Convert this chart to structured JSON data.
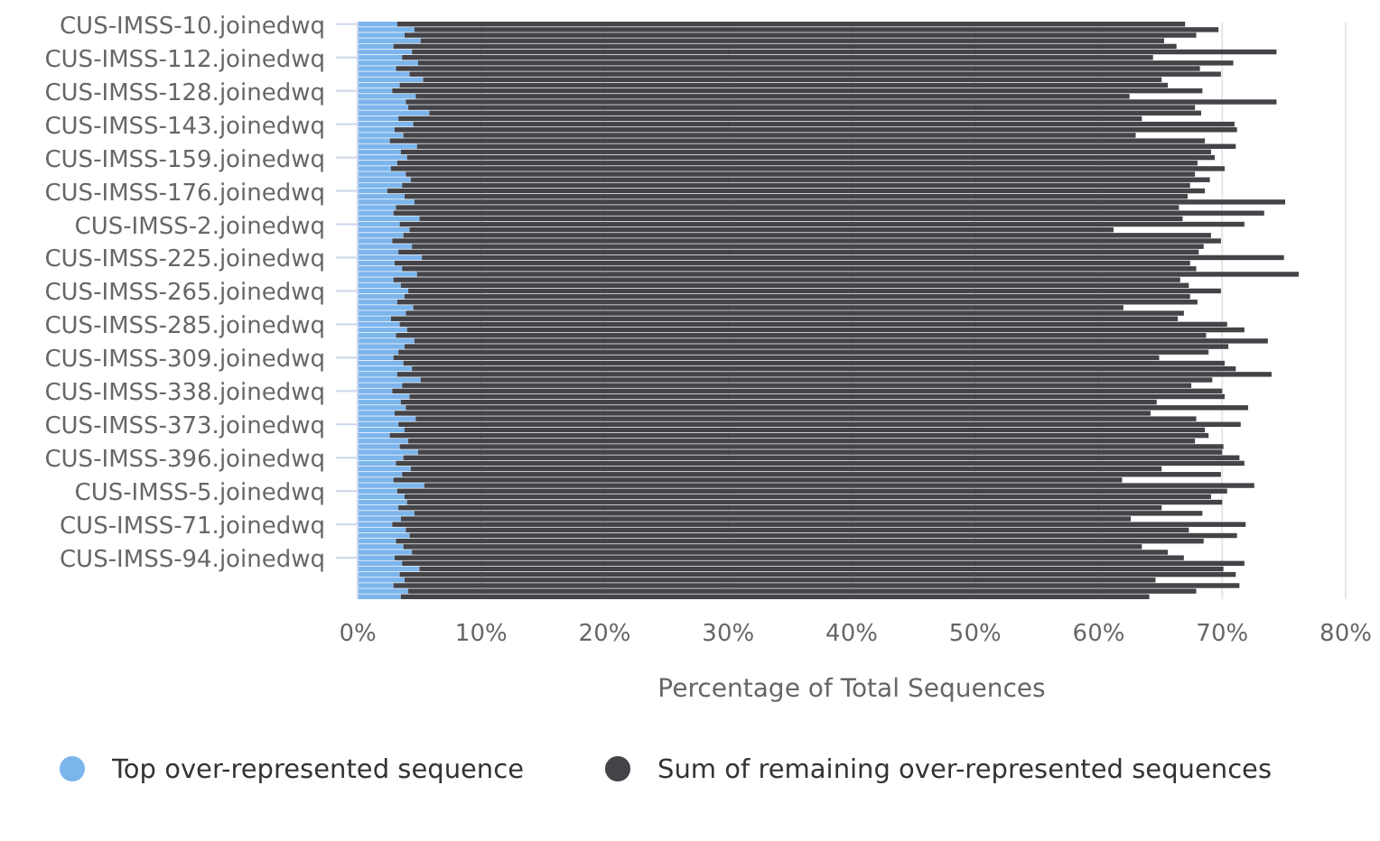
{
  "chart_data": {
    "type": "bar",
    "orientation": "horizontal",
    "stacked": true,
    "xlabel": "Percentage of Total Sequences",
    "categories": [
      "CUS-IMSS-10.joinedwq",
      null,
      null,
      null,
      null,
      null,
      "CUS-IMSS-112.joinedwq",
      null,
      null,
      null,
      null,
      null,
      "CUS-IMSS-128.joinedwq",
      null,
      null,
      null,
      null,
      null,
      "CUS-IMSS-143.joinedwq",
      null,
      null,
      null,
      null,
      null,
      "CUS-IMSS-159.joinedwq",
      null,
      null,
      null,
      null,
      null,
      "CUS-IMSS-176.joinedwq",
      null,
      null,
      null,
      null,
      null,
      "CUS-IMSS-2.joinedwq",
      null,
      null,
      null,
      null,
      null,
      "CUS-IMSS-225.joinedwq",
      null,
      null,
      null,
      null,
      null,
      "CUS-IMSS-265.joinedwq",
      null,
      null,
      null,
      null,
      null,
      "CUS-IMSS-285.joinedwq",
      null,
      null,
      null,
      null,
      null,
      "CUS-IMSS-309.joinedwq",
      null,
      null,
      null,
      null,
      null,
      "CUS-IMSS-338.joinedwq",
      null,
      null,
      null,
      null,
      null,
      "CUS-IMSS-373.joinedwq",
      null,
      null,
      null,
      null,
      null,
      "CUS-IMSS-396.joinedwq",
      null,
      null,
      null,
      null,
      null,
      "CUS-IMSS-5.joinedwq",
      null,
      null,
      null,
      null,
      null,
      "CUS-IMSS-71.joinedwq",
      null,
      null,
      null,
      null,
      null,
      "CUS-IMSS-94.joinedwq",
      null,
      null,
      null,
      null,
      null,
      null,
      null
    ],
    "series": [
      {
        "name": "Top over-represented sequence",
        "color": "#7cb5ec",
        "values": [
          3.2,
          4.6,
          3.8,
          5.1,
          2.9,
          4.4,
          3.6,
          4.9,
          3.1,
          4.2,
          5.3,
          3.4,
          2.8,
          4.7,
          3.9,
          4.1,
          5.8,
          3.3,
          4.5,
          3.0,
          3.7,
          2.6,
          4.8,
          3.5,
          4.0,
          3.2,
          2.7,
          3.9,
          4.3,
          3.6,
          2.4,
          3.8,
          4.6,
          3.1,
          2.9,
          5.0,
          3.4,
          4.2,
          3.7,
          2.8,
          4.4,
          3.3,
          5.2,
          3.0,
          3.6,
          4.8,
          2.9,
          3.5,
          4.1,
          3.8,
          3.2,
          4.5,
          3.9,
          2.7,
          3.4,
          4.0,
          3.1,
          4.6,
          3.8,
          3.3,
          2.9,
          3.7,
          4.4,
          3.2,
          5.1,
          3.6,
          2.8,
          4.2,
          3.5,
          3.9,
          3.0,
          4.7,
          3.3,
          3.8,
          2.6,
          4.1,
          3.4,
          4.9,
          3.7,
          3.1,
          4.3,
          3.6,
          2.9,
          5.4,
          3.2,
          3.8,
          4.0,
          3.3,
          4.6,
          3.5,
          2.8,
          3.9,
          4.2,
          3.1,
          3.7,
          4.4,
          3.0,
          3.6,
          5.0,
          3.4,
          3.8,
          2.9,
          4.1,
          3.5
        ]
      },
      {
        "name": "Sum of remaining over-represented sequences",
        "color": "#434348",
        "values": [
          63.8,
          65.1,
          64.1,
          60.2,
          63.4,
          70.0,
          60.8,
          66.0,
          65.1,
          65.7,
          59.8,
          62.2,
          65.6,
          57.8,
          70.5,
          63.7,
          62.5,
          60.2,
          66.5,
          68.2,
          59.3,
          66.0,
          66.3,
          65.6,
          65.4,
          64.8,
          67.5,
          63.9,
          64.7,
          63.8,
          66.2,
          63.4,
          70.5,
          63.4,
          70.5,
          61.8,
          68.4,
          57.0,
          65.4,
          67.1,
          64.1,
          64.8,
          69.8,
          64.4,
          64.3,
          71.4,
          63.7,
          63.8,
          65.8,
          63.6,
          64.8,
          57.5,
          63.0,
          63.7,
          67.0,
          67.8,
          65.6,
          69.1,
          66.7,
          65.6,
          62.0,
          66.5,
          66.7,
          70.8,
          64.1,
          63.9,
          67.2,
          66.0,
          61.2,
          68.2,
          61.2,
          63.2,
          68.2,
          64.8,
          66.3,
          63.7,
          66.7,
          65.1,
          67.7,
          68.7,
          60.8,
          66.3,
          59.0,
          67.2,
          67.2,
          65.3,
          66.0,
          61.8,
          63.8,
          59.1,
          69.1,
          63.4,
          67.0,
          65.4,
          59.8,
          61.2,
          63.9,
          68.2,
          65.1,
          67.7,
          60.8,
          68.5,
          63.8,
          60.6
        ]
      }
    ],
    "xlim": [
      0,
      80
    ],
    "xticks": [
      {
        "value": 0,
        "label": "0%"
      },
      {
        "value": 10,
        "label": "10%"
      },
      {
        "value": 20,
        "label": "20%"
      },
      {
        "value": 30,
        "label": "30%"
      },
      {
        "value": 40,
        "label": "40%"
      },
      {
        "value": 50,
        "label": "50%"
      },
      {
        "value": 60,
        "label": "60%"
      },
      {
        "value": 70,
        "label": "70%"
      },
      {
        "value": 80,
        "label": "80%"
      }
    ],
    "grid": "x",
    "legend": "bottom"
  }
}
